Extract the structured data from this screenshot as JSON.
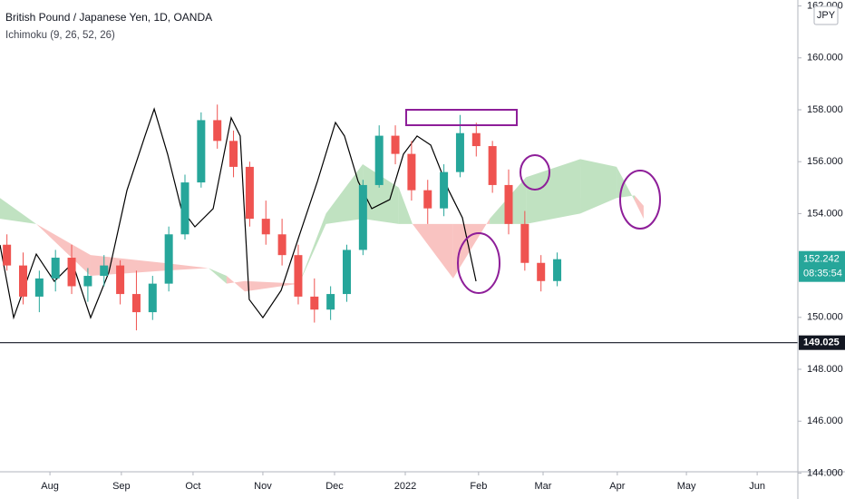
{
  "chart_data": {
    "type": "candlestick",
    "title": "British Pound / Japanese Yen, 1D, OANDA",
    "indicator": "Ichimoku (9, 26, 52, 26)",
    "currency": "JPY",
    "timer": "08:35:54",
    "up_color": "#26a69a",
    "down_color": "#ef5350",
    "x": [
      3,
      10,
      17,
      24,
      31,
      38,
      45,
      52,
      59,
      66,
      73,
      80,
      87,
      94,
      101,
      108,
      115,
      122,
      129,
      136,
      143,
      150,
      157,
      164,
      171,
      178,
      185,
      192,
      199,
      206,
      213,
      220,
      227,
      234,
      241
    ],
    "open": [
      152.8,
      152.0,
      150.8,
      151.5,
      152.3,
      151.2,
      151.6,
      152.0,
      150.9,
      150.2,
      151.3,
      153.2,
      155.2,
      157.6,
      156.8,
      155.8,
      153.8,
      153.2,
      152.4,
      150.8,
      150.3,
      150.9,
      152.6,
      155.1,
      157.0,
      156.3,
      154.9,
      154.2,
      155.6,
      157.1,
      156.6,
      155.1,
      153.6,
      152.1,
      151.4
    ],
    "high": [
      153.2,
      152.5,
      151.8,
      152.6,
      152.8,
      151.9,
      152.4,
      152.2,
      151.8,
      151.6,
      153.5,
      155.5,
      157.9,
      158.2,
      157.2,
      156.0,
      154.5,
      153.8,
      152.8,
      151.5,
      151.2,
      152.8,
      155.3,
      157.4,
      157.4,
      156.8,
      155.3,
      155.9,
      157.8,
      157.5,
      156.8,
      155.7,
      154.1,
      152.4,
      152.5
    ],
    "low": [
      151.8,
      150.5,
      150.2,
      151.0,
      150.9,
      150.6,
      151.2,
      150.5,
      149.5,
      149.9,
      151.0,
      153.0,
      155.0,
      156.5,
      155.4,
      153.5,
      152.8,
      152.0,
      150.5,
      149.8,
      149.9,
      150.6,
      152.4,
      155.0,
      155.9,
      154.5,
      153.6,
      153.9,
      155.4,
      156.2,
      154.8,
      153.2,
      151.8,
      151.0,
      151.2
    ],
    "close": [
      152.0,
      150.8,
      151.5,
      152.3,
      151.2,
      151.6,
      152.0,
      150.9,
      150.2,
      151.3,
      153.2,
      155.2,
      157.6,
      156.8,
      155.8,
      153.8,
      153.2,
      152.4,
      150.8,
      150.3,
      150.9,
      152.6,
      155.1,
      157.0,
      156.3,
      154.9,
      154.2,
      155.6,
      157.1,
      156.6,
      155.1,
      153.6,
      152.1,
      151.4,
      152.242
    ],
    "lagging_span": {
      "color": "#000000",
      "x": [
        0,
        5.9,
        15.7,
        23.5,
        31.4,
        39.2,
        47.1,
        54.9,
        62.7,
        66.7,
        72.5,
        78.4,
        84.3,
        92.2,
        100,
        103.9,
        107.8,
        113.7,
        121.6,
        129.4,
        137.3,
        145.1,
        149,
        154.9,
        160.8,
        168.6,
        174.5,
        180.4,
        186.3,
        194.1,
        200,
        205.9
      ],
      "values": [
        152.79,
        149.99,
        152.44,
        151.39,
        152.09,
        149.99,
        151.74,
        154.89,
        156.99,
        158.03,
        156.29,
        154.19,
        153.49,
        154.19,
        157.69,
        156.99,
        150.69,
        149.99,
        151.04,
        153.14,
        155.24,
        157.51,
        156.99,
        155.24,
        154.19,
        154.54,
        156.29,
        156.99,
        156.64,
        154.89,
        153.84,
        151.39
      ]
    },
    "cloud": {
      "up_color": "#a5d6a7",
      "down_color": "#f7a9a7",
      "x": [
        0,
        15.7,
        39.2,
        70.6,
        90.2,
        98,
        105.9,
        129.4,
        141,
        156.9,
        172.5,
        178.4,
        196,
        211.8,
        227.5,
        251,
        266.7,
        274.5,
        278.4
      ],
      "span_a": [
        154.6,
        153.6,
        151.6,
        151.8,
        151.9,
        151.6,
        151.0,
        151.3,
        154.0,
        155.9,
        155.0,
        153.6,
        151.5,
        153.8,
        155.4,
        156.1,
        155.8,
        154.5,
        153.8
      ],
      "span_b": [
        153.8,
        153.6,
        152.4,
        152.1,
        151.9,
        151.3,
        151.4,
        151.3,
        153.6,
        153.8,
        153.6,
        153.6,
        153.6,
        153.6,
        153.6,
        154.0,
        154.6,
        154.7,
        154.3
      ]
    },
    "hline": 149.025,
    "xlim": [
      0,
      345.1
    ],
    "xticks": [
      {
        "value": 21.6,
        "label": "Aug"
      },
      {
        "value": 52.5,
        "label": "Sep"
      },
      {
        "value": 83.5,
        "label": "Oct"
      },
      {
        "value": 113.7,
        "label": "Nov"
      },
      {
        "value": 144.7,
        "label": "Dec"
      },
      {
        "value": 175.3,
        "label": "2022"
      },
      {
        "value": 207,
        "label": "Feb"
      },
      {
        "value": 234.9,
        "label": "Mar"
      },
      {
        "value": 267,
        "label": "Apr"
      },
      {
        "value": 296.9,
        "label": "May"
      },
      {
        "value": 327.5,
        "label": "Jun"
      }
    ],
    "ylim": [
      144.05,
      162.23
    ],
    "yticks": [
      {
        "value": 144,
        "label": "144.000"
      },
      {
        "value": 146,
        "label": "146.000"
      },
      {
        "value": 148,
        "label": "148.000"
      },
      {
        "value": 150,
        "label": "150.000"
      },
      {
        "value": 154,
        "label": "154.000"
      },
      {
        "value": 156,
        "label": "156.000"
      },
      {
        "value": 158,
        "label": "158.000"
      },
      {
        "value": 160,
        "label": "160.000"
      },
      {
        "value": 162,
        "label": "162.000"
      }
    ]
  }
}
